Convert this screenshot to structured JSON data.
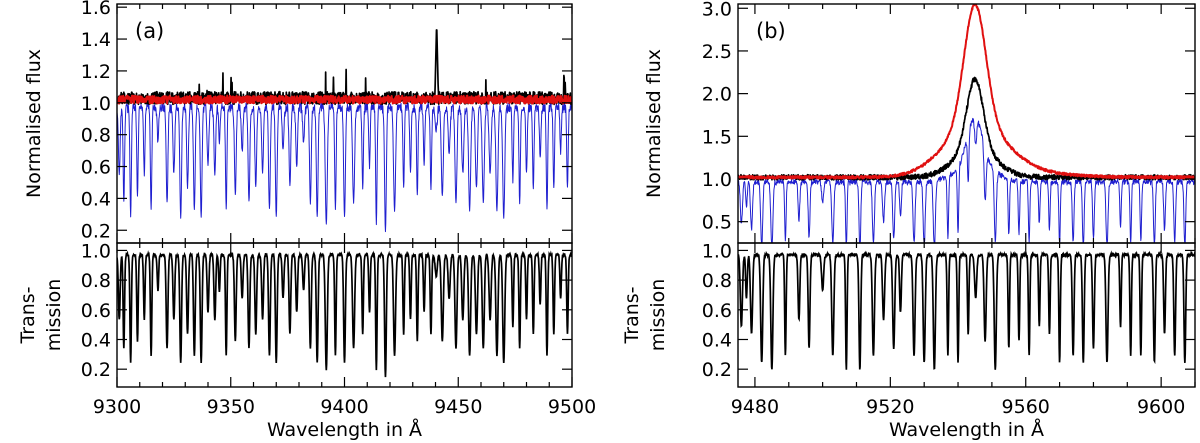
{
  "chart_data": [
    {
      "type": "line",
      "panel_label": "(a)",
      "xlabel": "Wavelength in Å",
      "xlim": [
        9300,
        9500
      ],
      "xticks": [
        9300,
        9350,
        9400,
        9450,
        9500
      ],
      "top": {
        "ylabel": "Normalised flux",
        "ylim": [
          0.12,
          1.62
        ],
        "yticks": [
          "0.2",
          "0.4",
          "0.6",
          "0.8",
          "1.0",
          "1.2",
          "1.4",
          "1.6"
        ],
        "series": [
          {
            "color": "#2020d0",
            "style": "observed",
            "baseline": 1.0,
            "noise": 0.03
          },
          {
            "color": "#000000",
            "style": "corrected",
            "baseline": 1.03,
            "noise": 0.04
          },
          {
            "color": "#e01010",
            "style": "reference",
            "baseline": 1.02,
            "noise": 0.025
          }
        ],
        "emission_line": {
          "x": 9440.5,
          "peak": 1.5
        }
      },
      "bottom": {
        "ylabel_lines": [
          "Trans-",
          "mission"
        ],
        "ylim": [
          0.08,
          1.05
        ],
        "yticks": [
          "0.2",
          "0.4",
          "0.6",
          "0.8",
          "1.0"
        ]
      },
      "absorption_lines": [
        [
          9301,
          0.55
        ],
        [
          9303,
          0.35
        ],
        [
          9306,
          0.25
        ],
        [
          9309,
          0.4
        ],
        [
          9312,
          0.55
        ],
        [
          9315,
          0.3
        ],
        [
          9318,
          0.75
        ],
        [
          9322,
          0.35
        ],
        [
          9325,
          0.55
        ],
        [
          9328,
          0.25
        ],
        [
          9331,
          0.45
        ],
        [
          9334,
          0.3
        ],
        [
          9337,
          0.25
        ],
        [
          9340,
          0.6
        ],
        [
          9343,
          0.55
        ],
        [
          9345,
          0.75
        ],
        [
          9348,
          0.3
        ],
        [
          9352,
          0.4
        ],
        [
          9355,
          0.7
        ],
        [
          9358,
          0.35
        ],
        [
          9361,
          0.45
        ],
        [
          9364,
          0.55
        ],
        [
          9367,
          0.3
        ],
        [
          9370,
          0.25
        ],
        [
          9373,
          0.7
        ],
        [
          9376,
          0.45
        ],
        [
          9379,
          0.6
        ],
        [
          9382,
          0.75
        ],
        [
          9385,
          0.35
        ],
        [
          9388,
          0.25
        ],
        [
          9392,
          0.2
        ],
        [
          9396,
          0.3
        ],
        [
          9400,
          0.25
        ],
        [
          9404,
          0.35
        ],
        [
          9408,
          0.45
        ],
        [
          9411,
          0.6
        ],
        [
          9414,
          0.2
        ],
        [
          9418,
          0.15
        ],
        [
          9422,
          0.3
        ],
        [
          9426,
          0.45
        ],
        [
          9429,
          0.55
        ],
        [
          9432,
          0.4
        ],
        [
          9435,
          0.6
        ],
        [
          9438,
          0.45
        ],
        [
          9440.3,
          0.85
        ],
        [
          9443,
          0.4
        ],
        [
          9446,
          0.7
        ],
        [
          9449,
          0.35
        ],
        [
          9452,
          0.55
        ],
        [
          9455,
          0.3
        ],
        [
          9458,
          0.45
        ],
        [
          9461,
          0.35
        ],
        [
          9464,
          0.55
        ],
        [
          9467,
          0.3
        ],
        [
          9470,
          0.25
        ],
        [
          9474,
          0.5
        ],
        [
          9477,
          0.35
        ],
        [
          9480,
          0.55
        ],
        [
          9483,
          0.45
        ],
        [
          9486,
          0.65
        ],
        [
          9489,
          0.3
        ],
        [
          9492,
          0.45
        ],
        [
          9495,
          0.7
        ],
        [
          9498,
          0.45
        ]
      ]
    },
    {
      "type": "line",
      "panel_label": "(b)",
      "xlabel": "Wavelength in Å",
      "xlim": [
        9475,
        9610
      ],
      "xticks": [
        9480,
        9520,
        9560,
        9600
      ],
      "top": {
        "ylabel": "Normalised flux",
        "ylim": [
          0.25,
          3.05
        ],
        "yticks": [
          "0.5",
          "1.0",
          "1.5",
          "2.0",
          "2.5",
          "3.0"
        ],
        "series": [
          {
            "color": "#2020d0",
            "style": "observed",
            "baseline": 1.0,
            "noise": 0.03
          },
          {
            "color": "#000000",
            "style": "corrected",
            "baseline": 1.02,
            "noise": 0.03
          },
          {
            "color": "#e01010",
            "style": "reference",
            "baseline": 1.02,
            "noise": 0.015
          }
        ],
        "emission_line": {
          "x": 9545,
          "peak_black": 2.15,
          "peak_red": 3.0,
          "peak_blue": 1.75
        }
      },
      "bottom": {
        "ylabel_lines": [
          "Trans-",
          "mission"
        ],
        "ylim": [
          0.08,
          1.05
        ],
        "yticks": [
          "0.2",
          "0.4",
          "0.6",
          "0.8",
          "1.0"
        ]
      },
      "absorption_lines": [
        [
          9476,
          0.5
        ],
        [
          9477.5,
          0.7
        ],
        [
          9479,
          0.45
        ],
        [
          9482,
          0.25
        ],
        [
          9485,
          0.2
        ],
        [
          9489,
          0.3
        ],
        [
          9493,
          0.55
        ],
        [
          9496,
          0.35
        ],
        [
          9500,
          0.75
        ],
        [
          9503,
          0.3
        ],
        [
          9507,
          0.2
        ],
        [
          9511,
          0.2
        ],
        [
          9515,
          0.3
        ],
        [
          9518,
          0.55
        ],
        [
          9521,
          0.35
        ],
        [
          9523,
          0.6
        ],
        [
          9527,
          0.3
        ],
        [
          9530,
          0.25
        ],
        [
          9533,
          0.2
        ],
        [
          9537,
          0.3
        ],
        [
          9540,
          0.25
        ],
        [
          9543,
          0.45
        ],
        [
          9545.2,
          0.7
        ],
        [
          9548,
          0.4
        ],
        [
          9551,
          0.2
        ],
        [
          9555,
          0.35
        ],
        [
          9558,
          0.4
        ],
        [
          9561,
          0.3
        ],
        [
          9564,
          0.5
        ],
        [
          9567,
          0.45
        ],
        [
          9570,
          0.25
        ],
        [
          9574,
          0.3
        ],
        [
          9577,
          0.25
        ],
        [
          9580,
          0.35
        ],
        [
          9584,
          0.25
        ],
        [
          9588,
          0.5
        ],
        [
          9591,
          0.3
        ],
        [
          9594,
          0.3
        ],
        [
          9598,
          0.25
        ],
        [
          9601,
          0.45
        ],
        [
          9604,
          0.3
        ],
        [
          9607,
          0.25
        ]
      ]
    }
  ]
}
